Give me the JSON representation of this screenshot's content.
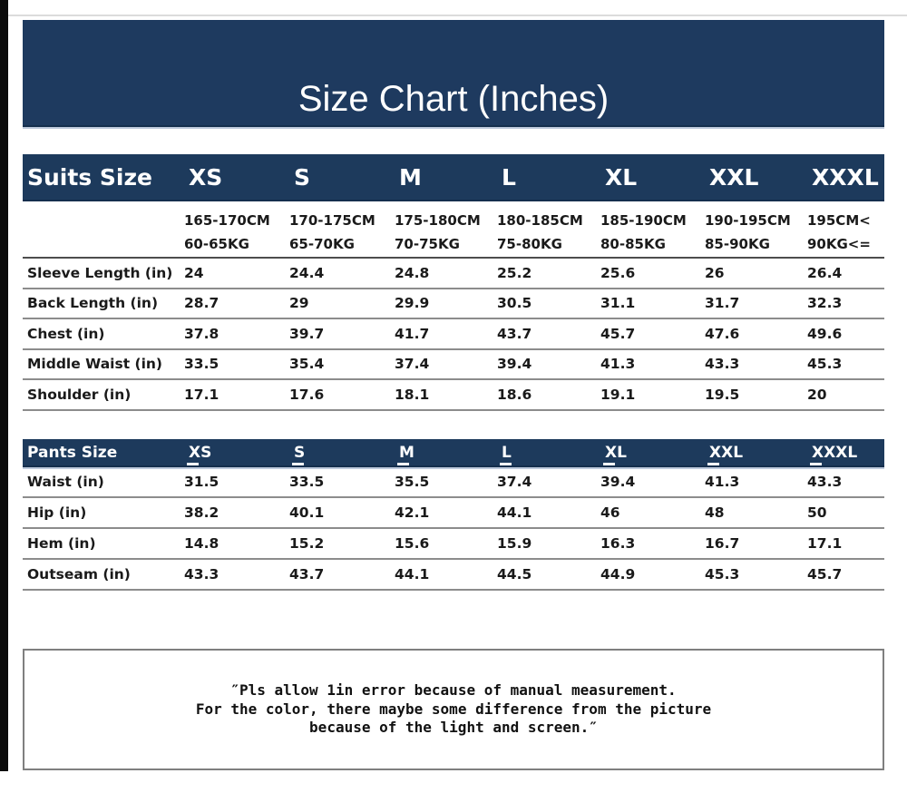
{
  "banner": {
    "title": "Size Chart (Inches)"
  },
  "suits_table": {
    "title": "Suits Size",
    "sizes": [
      "XS",
      "S",
      "M",
      "L",
      "XL",
      "XXL",
      "XXXL"
    ],
    "size_details": [
      {
        "height": "165-170CM",
        "weight": "60-65KG"
      },
      {
        "height": "170-175CM",
        "weight": "65-70KG"
      },
      {
        "height": "175-180CM",
        "weight": "70-75KG"
      },
      {
        "height": "180-185CM",
        "weight": "75-80KG"
      },
      {
        "height": "185-190CM",
        "weight": "80-85KG"
      },
      {
        "height": "190-195CM",
        "weight": "85-90KG"
      },
      {
        "height": "195CM<",
        "weight": "90KG<="
      }
    ],
    "rows": [
      {
        "label": "Sleeve Length (in)",
        "values": [
          "24",
          "24.4",
          "24.8",
          "25.2",
          "25.6",
          "26",
          "26.4"
        ]
      },
      {
        "label": "Back Length (in)",
        "values": [
          "28.7",
          "29",
          "29.9",
          "30.5",
          "31.1",
          "31.7",
          "32.3"
        ]
      },
      {
        "label": "Chest (in)",
        "values": [
          "37.8",
          "39.7",
          "41.7",
          "43.7",
          "45.7",
          "47.6",
          "49.6"
        ]
      },
      {
        "label": "Middle Waist (in)",
        "values": [
          "33.5",
          "35.4",
          "37.4",
          "39.4",
          "41.3",
          "43.3",
          "45.3"
        ]
      },
      {
        "label": "Shoulder (in)",
        "values": [
          "17.1",
          "17.6",
          "18.1",
          "18.6",
          "19.1",
          "19.5",
          "20"
        ]
      }
    ]
  },
  "pants_table": {
    "title": "Pants Size",
    "sizes": [
      "XS",
      "S",
      "M",
      "L",
      "XL",
      "XXL",
      "XXXL"
    ],
    "rows": [
      {
        "label": "Waist (in)",
        "values": [
          "31.5",
          "33.5",
          "35.5",
          "37.4",
          "39.4",
          "41.3",
          "43.3"
        ]
      },
      {
        "label": "Hip (in)",
        "values": [
          "38.2",
          "40.1",
          "42.1",
          "44.1",
          "46",
          "48",
          "50"
        ]
      },
      {
        "label": "Hem (in)",
        "values": [
          "14.8",
          "15.2",
          "15.6",
          "15.9",
          "16.3",
          "16.7",
          "17.1"
        ]
      },
      {
        "label": "Outseam (in)",
        "values": [
          "43.3",
          "43.7",
          "44.1",
          "44.5",
          "44.9",
          "45.3",
          "45.7"
        ]
      }
    ]
  },
  "disclaimer": {
    "lines": [
      "″Pls allow 1in error because of manual measurement.",
      "For the color, there maybe some difference from the picture",
      "because of the light and screen.″"
    ]
  },
  "colors": {
    "banner_bg": "#1e3a5f",
    "header_bg": "#1d3a5c",
    "header_text": "#ffffff",
    "body_text": "#1a1a1a",
    "row_line": "#8c8c8c",
    "box_border": "#7f7f7f"
  }
}
